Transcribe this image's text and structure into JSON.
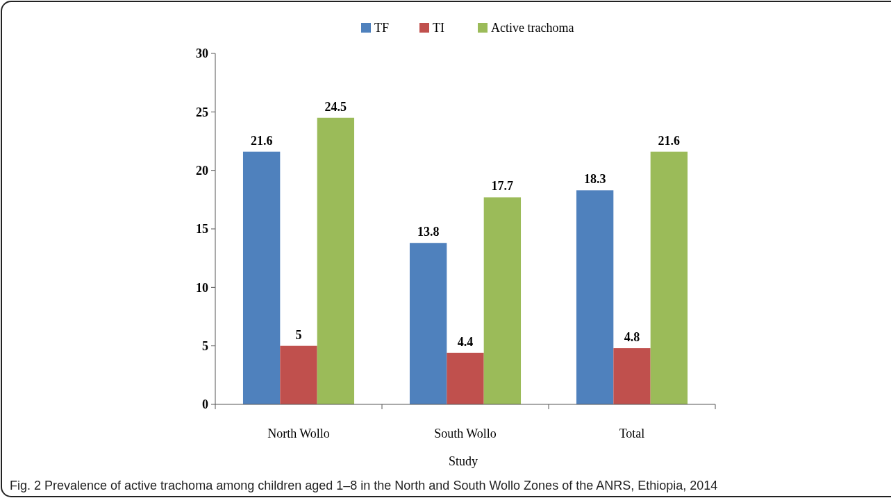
{
  "chart_data": {
    "type": "bar",
    "xlabel": "Study",
    "categories": [
      "North Wollo",
      "South Wollo",
      "Total"
    ],
    "series": [
      {
        "name": "TF",
        "color": "#4f81bd",
        "values": [
          21.6,
          13.8,
          18.3
        ]
      },
      {
        "name": "TI",
        "color": "#c0504d",
        "values": [
          5,
          4.4,
          4.8
        ]
      },
      {
        "name": "Active trachoma",
        "color": "#9bbb59",
        "values": [
          24.5,
          17.7,
          21.6
        ]
      }
    ],
    "ylim": [
      0,
      30
    ],
    "yticks": [
      0,
      5,
      10,
      15,
      20,
      25,
      30
    ],
    "data_labels": true,
    "legend": "top",
    "grid": false,
    "annotations": [
      "Fig. 2 Prevalence of active trachoma among children aged 1–8 in the North and South Wollo Zones of the ANRS, Ethiopia, 2014"
    ]
  }
}
